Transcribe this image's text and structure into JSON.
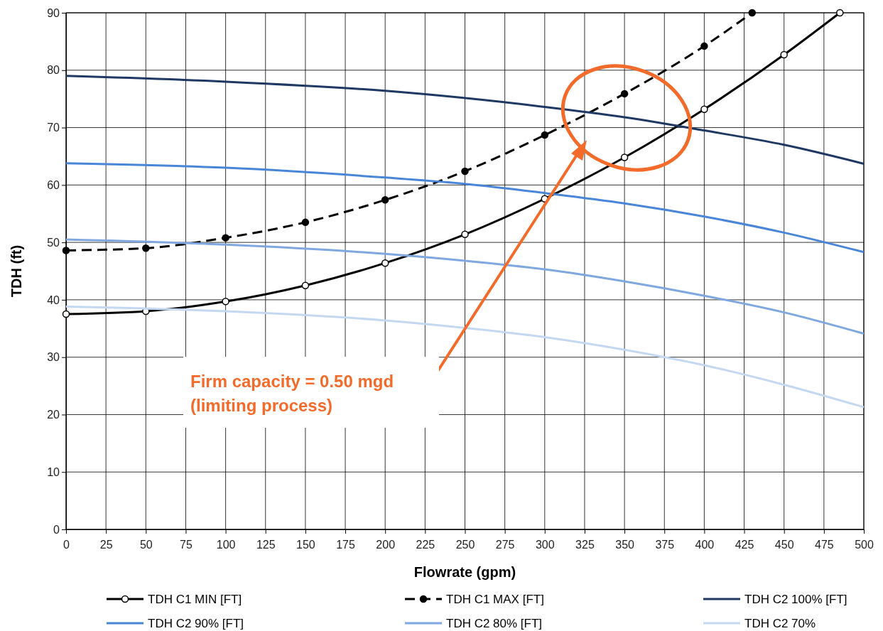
{
  "chart_data": {
    "type": "line",
    "xlabel": "Flowrate (gpm)",
    "ylabel": "TDH (ft)",
    "xlim": [
      0,
      500
    ],
    "ylim": [
      0,
      90
    ],
    "xticks": [
      0,
      25,
      50,
      75,
      100,
      125,
      150,
      175,
      200,
      225,
      250,
      275,
      300,
      325,
      350,
      375,
      400,
      425,
      450,
      475,
      500
    ],
    "yticks": [
      0,
      10,
      20,
      30,
      40,
      50,
      60,
      70,
      80,
      90
    ],
    "grid": true,
    "legend": "bottom",
    "annotations": [
      "Firm capacity = 0.50 mgd\n(limiting process)"
    ],
    "series": [
      {
        "name": "TDH C1 MIN [FT]",
        "color": "#000000",
        "marker": "circle",
        "line_style": "solid",
        "x": [
          0,
          50,
          100,
          150,
          200,
          250,
          300,
          350,
          400,
          450,
          485
        ],
        "values": [
          37.5,
          38,
          39.7,
          42.5,
          46.4,
          51.4,
          57.6,
          64.8,
          73.2,
          82.7,
          90
        ]
      },
      {
        "name": "TDH C1 MAX [FT]",
        "color": "#000000",
        "marker": "circle",
        "line_style": "dashed",
        "x": [
          0,
          50,
          100,
          150,
          200,
          250,
          300,
          350,
          400,
          430
        ],
        "values": [
          48.6,
          49,
          50.8,
          53.5,
          57.4,
          62.4,
          68.7,
          75.9,
          84.2,
          90
        ]
      },
      {
        "name": "TDH C2 100% [FT]",
        "color": "#1f3864",
        "marker": "none",
        "line_style": "solid",
        "x": [
          0,
          100,
          200,
          300,
          350,
          400,
          450,
          500
        ],
        "values": [
          79,
          78,
          76.4,
          73.6,
          71.8,
          69.5,
          67,
          63.7
        ]
      },
      {
        "name": "TDH C2 90% [FT]",
        "color": "#4a86d8",
        "marker": "none",
        "line_style": "solid",
        "x": [
          0,
          100,
          200,
          250,
          300,
          350,
          400,
          450,
          500
        ],
        "values": [
          63.8,
          63,
          61.3,
          60.2,
          58.6,
          56.8,
          54.5,
          51.7,
          48.3
        ]
      },
      {
        "name": "TDH C2 80% [FT]",
        "color": "#7fa8e0",
        "marker": "none",
        "line_style": "solid",
        "x": [
          0,
          100,
          200,
          250,
          300,
          350,
          400,
          450,
          500
        ],
        "values": [
          50.5,
          49.6,
          48,
          46.8,
          45.3,
          43.2,
          40.7,
          37.8,
          34.1
        ]
      },
      {
        "name": "TDH C2 70%",
        "color": "#c5d8f1",
        "marker": "none",
        "line_style": "solid",
        "x": [
          0,
          100,
          200,
          250,
          300,
          350,
          400,
          450,
          500
        ],
        "values": [
          38.8,
          38,
          36.4,
          35.1,
          33.5,
          31.3,
          28.6,
          25.2,
          21.3
        ]
      }
    ]
  }
}
